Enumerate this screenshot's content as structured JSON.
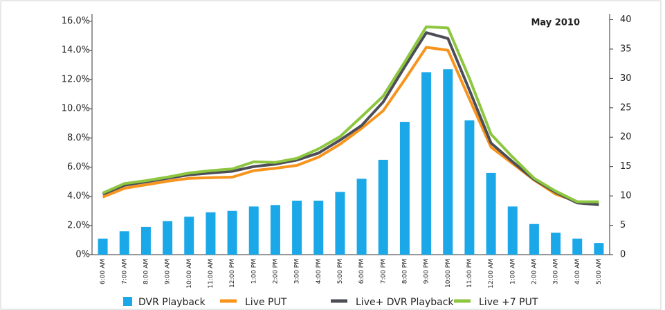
{
  "chart_data": {
    "type": "bar",
    "annotation": "May 2010",
    "categories": [
      "6:00 AM",
      "7:00 AM",
      "8:00 AM",
      "9:00 AM",
      "10:00 AM",
      "11:00 AM",
      "12:00 PM",
      "1:00 PM",
      "2:00 PM",
      "3:00 PM",
      "4:00 PM",
      "5:00 PM",
      "6:00 PM",
      "7:00 PM",
      "8:00 PM",
      "9:00 PM",
      "10:00 PM",
      "11:00 PM",
      "12:00 AM",
      "1:00 AM",
      "2:00 AM",
      "3:00 AM",
      "4:00 AM",
      "5:00 AM"
    ],
    "series": [
      {
        "name": "DVR Playback",
        "type": "bar",
        "color": "#1ba8e8",
        "axis": "y",
        "values": [
          1.1,
          1.6,
          1.9,
          2.3,
          2.6,
          2.9,
          3.0,
          3.3,
          3.4,
          3.7,
          3.7,
          4.3,
          5.2,
          6.5,
          9.1,
          12.5,
          12.7,
          9.2,
          5.6,
          3.3,
          2.1,
          1.5,
          1.1,
          0.8
        ]
      },
      {
        "name": "Live PUT",
        "type": "line",
        "color": "#f7941d",
        "axis": "y2",
        "values": [
          9.8,
          11.3,
          11.9,
          12.5,
          13.0,
          13.1,
          13.2,
          14.3,
          14.7,
          15.2,
          16.6,
          18.8,
          21.5,
          24.5,
          29.8,
          35.3,
          34.8,
          26.5,
          18.3,
          15.5,
          12.7,
          10.3,
          9.0,
          8.9
        ]
      },
      {
        "name": "Live+ DVR Playback",
        "type": "line",
        "color": "#4d4d57",
        "axis": "y2",
        "values": [
          10.3,
          11.8,
          12.4,
          13.0,
          13.6,
          13.9,
          14.2,
          15.0,
          15.4,
          16.1,
          17.3,
          19.5,
          22.0,
          26.0,
          32.0,
          37.8,
          36.8,
          28.0,
          19.0,
          15.8,
          12.8,
          10.6,
          8.8,
          8.5
        ]
      },
      {
        "name": "Live +7 PUT",
        "type": "line",
        "color": "#8dc63f",
        "axis": "y2",
        "values": [
          10.5,
          12.1,
          12.6,
          13.2,
          13.9,
          14.3,
          14.6,
          15.8,
          15.7,
          16.4,
          18.0,
          20.1,
          23.5,
          27.0,
          32.8,
          38.8,
          38.6,
          30.0,
          20.5,
          16.6,
          13.0,
          10.8,
          9.0,
          9.0
        ]
      }
    ],
    "ylim": [
      0,
      16.5
    ],
    "yticks": [
      {
        "value": 0,
        "label": "0%"
      },
      {
        "value": 2,
        "label": "2.0%"
      },
      {
        "value": 4,
        "label": "4.0%"
      },
      {
        "value": 6,
        "label": "6.0%"
      },
      {
        "value": 8,
        "label": "8.0%"
      },
      {
        "value": 10,
        "label": "10.0%"
      },
      {
        "value": 12,
        "label": "12.0%"
      },
      {
        "value": 14,
        "label": "14.0%"
      },
      {
        "value": 16,
        "label": "16.0%"
      }
    ],
    "y2lim": [
      0,
      41
    ],
    "y2ticks": [
      0,
      5,
      10,
      15,
      20,
      25,
      30,
      35,
      40
    ]
  }
}
